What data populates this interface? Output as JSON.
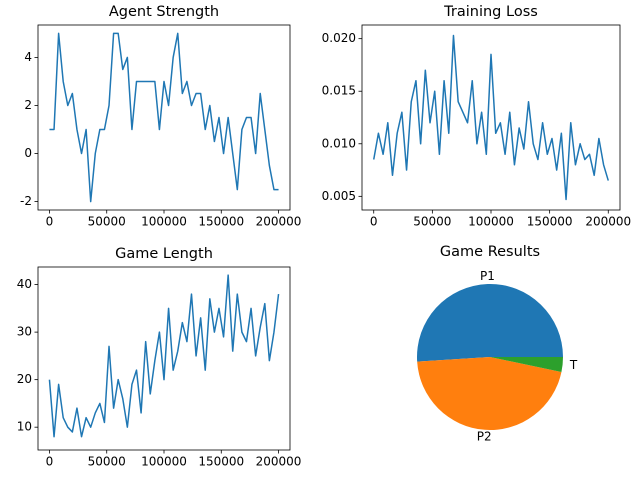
{
  "chart_data": [
    {
      "type": "line",
      "title": "Agent Strength",
      "color": "#1f77b4",
      "x": [
        0,
        4000,
        8000,
        12000,
        16000,
        20000,
        24000,
        28000,
        32000,
        36000,
        40000,
        44000,
        48000,
        52000,
        56000,
        60000,
        64000,
        68000,
        72000,
        76000,
        80000,
        84000,
        88000,
        92000,
        96000,
        100000,
        104000,
        108000,
        112000,
        116000,
        120000,
        124000,
        128000,
        132000,
        136000,
        140000,
        144000,
        148000,
        152000,
        156000,
        160000,
        164000,
        168000,
        172000,
        176000,
        180000,
        184000,
        188000,
        192000,
        196000,
        200000
      ],
      "values": [
        1,
        1,
        5,
        3,
        2,
        2.5,
        1,
        0,
        1,
        -2,
        0,
        1,
        1,
        2,
        5,
        5,
        3.5,
        4,
        1,
        3,
        3,
        3,
        3,
        3,
        1,
        3,
        2,
        4,
        5,
        2.5,
        3,
        2,
        2.5,
        2.5,
        1,
        2,
        0.5,
        1.5,
        0,
        1.5,
        0,
        -1.5,
        1,
        1.5,
        1.5,
        0,
        2.5,
        1,
        -0.5,
        -1.5,
        -1.5
      ],
      "xlim": [
        -10000,
        210000
      ],
      "xticks": [
        0,
        50000,
        100000,
        150000,
        200000
      ],
      "ylim": [
        -2.35,
        5.35
      ],
      "yticks": [
        -2,
        0,
        2,
        4
      ]
    },
    {
      "type": "line",
      "title": "Training Loss",
      "color": "#1f77b4",
      "x": [
        0,
        4000,
        8000,
        12000,
        16000,
        20000,
        24000,
        28000,
        32000,
        36000,
        40000,
        44000,
        48000,
        52000,
        56000,
        60000,
        64000,
        68000,
        72000,
        76000,
        80000,
        84000,
        88000,
        92000,
        96000,
        100000,
        104000,
        108000,
        112000,
        116000,
        120000,
        124000,
        128000,
        132000,
        136000,
        140000,
        144000,
        148000,
        152000,
        156000,
        160000,
        164000,
        168000,
        172000,
        176000,
        180000,
        184000,
        188000,
        192000,
        196000,
        200000
      ],
      "values": [
        0.0085,
        0.011,
        0.009,
        0.012,
        0.007,
        0.011,
        0.013,
        0.0075,
        0.014,
        0.016,
        0.01,
        0.017,
        0.012,
        0.015,
        0.009,
        0.016,
        0.011,
        0.0203,
        0.014,
        0.013,
        0.012,
        0.016,
        0.01,
        0.013,
        0.009,
        0.0185,
        0.011,
        0.012,
        0.009,
        0.013,
        0.008,
        0.0115,
        0.0095,
        0.014,
        0.01,
        0.0085,
        0.012,
        0.009,
        0.0105,
        0.0075,
        0.011,
        0.0047,
        0.012,
        0.008,
        0.01,
        0.0085,
        0.009,
        0.007,
        0.0105,
        0.008,
        0.0065
      ],
      "xlim": [
        -10000,
        210000
      ],
      "xticks": [
        0,
        50000,
        100000,
        150000,
        200000
      ],
      "ylim": [
        0.0037,
        0.0213
      ],
      "yticks": [
        0.005,
        {
          "value": 0.01,
          "label": "0.010"
        },
        0.015,
        {
          "value": 0.02,
          "label": "0.020"
        }
      ]
    },
    {
      "type": "line",
      "title": "Game Length",
      "color": "#1f77b4",
      "x": [
        0,
        4000,
        8000,
        12000,
        16000,
        20000,
        24000,
        28000,
        32000,
        36000,
        40000,
        44000,
        48000,
        52000,
        56000,
        60000,
        64000,
        68000,
        72000,
        76000,
        80000,
        84000,
        88000,
        92000,
        96000,
        100000,
        104000,
        108000,
        112000,
        116000,
        120000,
        124000,
        128000,
        132000,
        136000,
        140000,
        144000,
        148000,
        152000,
        156000,
        160000,
        164000,
        168000,
        172000,
        176000,
        180000,
        184000,
        188000,
        192000,
        196000,
        200000
      ],
      "values": [
        20,
        8,
        19,
        12,
        10,
        9,
        14,
        8,
        12,
        10,
        13,
        15,
        11,
        27,
        14,
        20,
        16,
        10,
        19,
        22,
        13,
        28,
        17,
        24,
        30,
        20,
        35,
        22,
        26,
        32,
        28,
        38,
        25,
        33,
        22,
        37,
        30,
        35,
        29,
        42,
        26,
        38,
        30,
        28,
        35,
        25,
        31,
        36,
        24,
        30,
        38
      ],
      "xlim": [
        -10000,
        210000
      ],
      "xticks": [
        0,
        50000,
        100000,
        150000,
        200000
      ],
      "ylim": [
        5.2,
        43.7
      ],
      "yticks": [
        10,
        20,
        30,
        40
      ]
    },
    {
      "type": "pie",
      "title": "Game Results",
      "categories": [
        "P1",
        "P2",
        "T"
      ],
      "values": [
        51,
        45.7,
        3.3
      ],
      "colors": [
        "#1f77b4",
        "#ff7f0e",
        "#2ca02c"
      ]
    }
  ]
}
